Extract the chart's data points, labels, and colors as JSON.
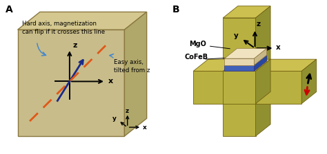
{
  "panel_a_label": "A",
  "panel_b_label": "B",
  "bg_color": "#c8bc8a",
  "box_top_color": "#d4c890",
  "box_right_color": "#b0a86a",
  "box_edge_color": "#8a7840",
  "hard_axis_color": "#e05818",
  "easy_axis_color": "#1a2a8a",
  "annotation_color": "#4488cc",
  "cross_front_color": "#b8b040",
  "cross_top_color": "#ccc050",
  "cross_right_color": "#909030",
  "mgo_front_color": "#e8d8b0",
  "mgo_top_color": "#f0e4c0",
  "mgo_right_color": "#c8b888",
  "cofeb_front_color": "#4060b8",
  "cofeb_top_color": "#5070c8",
  "cofeb_right_color": "#2848a0",
  "red_arrow_color": "#cc0000",
  "hard_axis_text": "Hard axis, magnetization\ncan flip if it crosses this line",
  "easy_axis_text": "Easy axis,\ntilted from z",
  "mgo_label": "MgO",
  "cofeb_label": "CoFeB",
  "fig_width": 4.74,
  "fig_height": 2.24
}
